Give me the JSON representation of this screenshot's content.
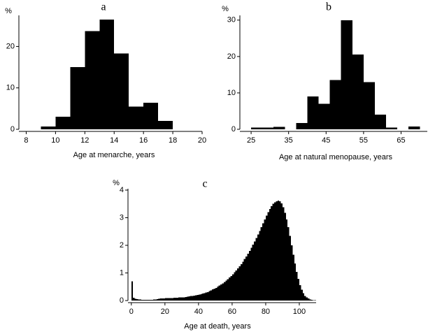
{
  "chart_data": [
    {
      "type": "histogram",
      "title": "a",
      "ylabel": "%",
      "xlabel": "Age at menarche, years",
      "color": "#000000",
      "bins": [
        9,
        10,
        11,
        12,
        13,
        14,
        15,
        16,
        17,
        18
      ],
      "values": [
        0.7,
        3,
        15,
        23.7,
        26.5,
        18.3,
        5.5,
        6.4,
        2
      ],
      "xlim": [
        7.5,
        20
      ],
      "xticks": [
        8,
        10,
        12,
        14,
        16,
        18,
        20
      ],
      "ylim": [
        0,
        27.5
      ],
      "yticks": [
        0,
        10,
        20
      ]
    },
    {
      "type": "histogram",
      "title": "b",
      "ylabel": "%",
      "xlabel": "Age at natural menopause, years",
      "color": "#000000",
      "bins": [
        25,
        28,
        31,
        34,
        37,
        40,
        43,
        46,
        49,
        52,
        55,
        58,
        61,
        64,
        67,
        70
      ],
      "values": [
        0.5,
        0.5,
        0.7,
        0,
        1.7,
        9,
        7,
        13.5,
        30,
        20.5,
        13,
        4,
        0.5,
        0,
        0.8
      ],
      "xlim": [
        22,
        72
      ],
      "xticks": [
        25,
        35,
        45,
        55,
        65
      ],
      "ylim": [
        0,
        31.3
      ],
      "yticks": [
        0,
        10,
        20,
        30
      ]
    },
    {
      "type": "histogram",
      "title": "c",
      "ylabel": "%",
      "xlabel": "Age at death, years",
      "color": "#000000",
      "bins": [
        0,
        1,
        2,
        3,
        4,
        5,
        6,
        7,
        8,
        9,
        10,
        11,
        12,
        13,
        14,
        15,
        16,
        17,
        18,
        19,
        20,
        21,
        22,
        23,
        24,
        25,
        26,
        27,
        28,
        29,
        30,
        31,
        32,
        33,
        34,
        35,
        36,
        37,
        38,
        39,
        40,
        41,
        42,
        43,
        44,
        45,
        46,
        47,
        48,
        49,
        50,
        51,
        52,
        53,
        54,
        55,
        56,
        57,
        58,
        59,
        60,
        61,
        62,
        63,
        64,
        65,
        66,
        67,
        68,
        69,
        70,
        71,
        72,
        73,
        74,
        75,
        76,
        77,
        78,
        79,
        80,
        81,
        82,
        83,
        84,
        85,
        86,
        87,
        88,
        89,
        90,
        91,
        92,
        93,
        94,
        95,
        96,
        97,
        98,
        99,
        100,
        101,
        102,
        103,
        104,
        105,
        106,
        107,
        108,
        109,
        110
      ],
      "values": [
        0.7,
        0.1,
        0.06,
        0.05,
        0.04,
        0.04,
        0.03,
        0.03,
        0.03,
        0.03,
        0.03,
        0.03,
        0.03,
        0.04,
        0.04,
        0.05,
        0.06,
        0.07,
        0.08,
        0.08,
        0.09,
        0.09,
        0.09,
        0.09,
        0.09,
        0.1,
        0.1,
        0.1,
        0.11,
        0.11,
        0.12,
        0.12,
        0.13,
        0.14,
        0.15,
        0.16,
        0.17,
        0.18,
        0.19,
        0.2,
        0.21,
        0.23,
        0.25,
        0.27,
        0.29,
        0.31,
        0.34,
        0.37,
        0.4,
        0.43,
        0.46,
        0.5,
        0.54,
        0.58,
        0.62,
        0.67,
        0.72,
        0.77,
        0.83,
        0.89,
        0.95,
        1.02,
        1.09,
        1.16,
        1.24,
        1.32,
        1.41,
        1.5,
        1.6,
        1.7,
        1.8,
        1.91,
        2.02,
        2.14,
        2.26,
        2.39,
        2.52,
        2.66,
        2.8,
        2.94,
        3.08,
        3.2,
        3.32,
        3.42,
        3.5,
        3.56,
        3.6,
        3.62,
        3.6,
        3.52,
        3.38,
        3.18,
        2.94,
        2.66,
        2.34,
        2.0,
        1.66,
        1.34,
        1.04,
        0.78,
        0.56,
        0.39,
        0.26,
        0.17,
        0.11,
        0.07,
        0.04,
        0.02,
        0.01,
        0.01
      ],
      "xlim": [
        -2,
        110
      ],
      "xticks": [
        0,
        20,
        40,
        60,
        80,
        100
      ],
      "ylim": [
        0,
        4.05
      ],
      "yticks": [
        0,
        1,
        2,
        3,
        4
      ]
    }
  ]
}
